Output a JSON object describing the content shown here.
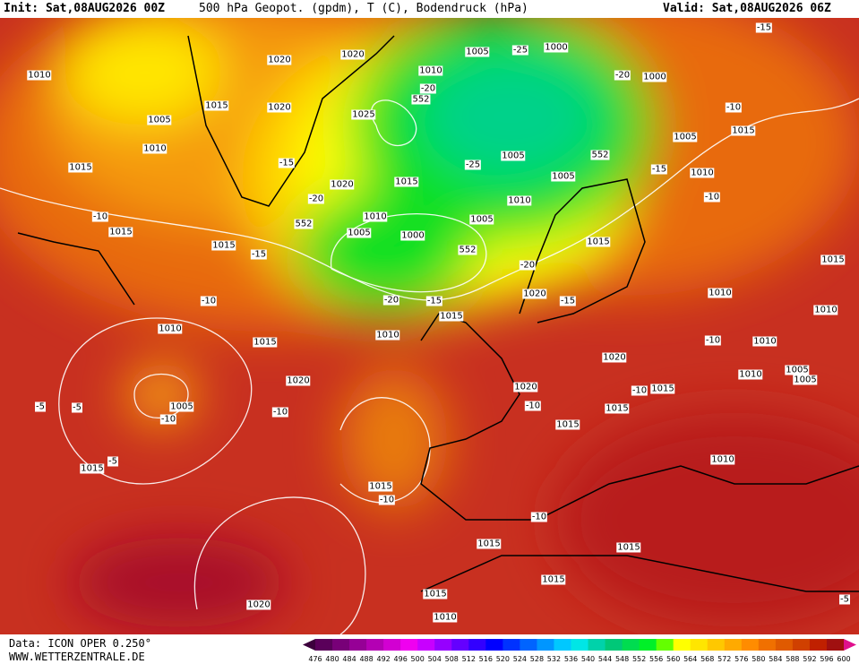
{
  "header": {
    "init": "Init: Sat,08AUG2026 00Z",
    "title": "500 hPa Geopot. (gpdm), T (C), Bodendruck (hPa)",
    "valid": "Valid: Sat,08AUG2026 06Z"
  },
  "footer": {
    "data": "Data: ICON OPER 0.250°",
    "site": "WWW.WETTERZENTRALE.DE"
  },
  "colorbar": {
    "labels": [
      476,
      480,
      484,
      488,
      492,
      496,
      500,
      504,
      508,
      512,
      516,
      520,
      524,
      528,
      532,
      536,
      540,
      544,
      548,
      552,
      556,
      560,
      564,
      568,
      572,
      576,
      580,
      584,
      588,
      592,
      596,
      600
    ],
    "colors": [
      "#3c003c",
      "#5a005a",
      "#780078",
      "#960096",
      "#b400b4",
      "#d200d2",
      "#f000f0",
      "#c800ff",
      "#9600ff",
      "#6400ff",
      "#3200ff",
      "#0000ff",
      "#0032ff",
      "#0064ff",
      "#0096ff",
      "#00c8ff",
      "#00e6e6",
      "#00d2aa",
      "#00c878",
      "#00dc50",
      "#00f028",
      "#64ff00",
      "#ffff00",
      "#ffe600",
      "#ffc800",
      "#ffaa00",
      "#ff8c00",
      "#f07000",
      "#e05a00",
      "#d04000",
      "#c02000",
      "#a01010",
      "#e0108c"
    ]
  },
  "map": {
    "labels": [
      "1010",
      "1020",
      "1020",
      "1010",
      "1005",
      "-25",
      "1000",
      "-15",
      "-20",
      "552",
      "-20",
      "1000",
      "1005",
      "1010",
      "1015",
      "1020",
      "1025",
      "-10",
      "1015",
      "1005",
      "1015",
      "-15",
      "-25",
      "1005",
      "552",
      "-15",
      "1010",
      "1020",
      "1015",
      "1005",
      "-20",
      "1010",
      "-10",
      "552",
      "1010",
      "1005",
      "-10",
      "1015",
      "1005",
      "1000",
      "1015",
      "1015",
      "-15",
      "552",
      "-20",
      "1015",
      "1020",
      "-10",
      "-20",
      "-15",
      "-15",
      "1010",
      "1010",
      "1015",
      "1010",
      "1015",
      "1010",
      "-10",
      "1010",
      "1020",
      "1005",
      "1010",
      "1005",
      "1020",
      "1020",
      "-10",
      "1015",
      "-5",
      "-5",
      "1005",
      "-10",
      "-10",
      "-10",
      "1015",
      "1015",
      "1015",
      "-5",
      "1010",
      "1015",
      "-10",
      "-10",
      "1015",
      "1015",
      "1015",
      "1015",
      "1020",
      "1010",
      "-5"
    ]
  }
}
